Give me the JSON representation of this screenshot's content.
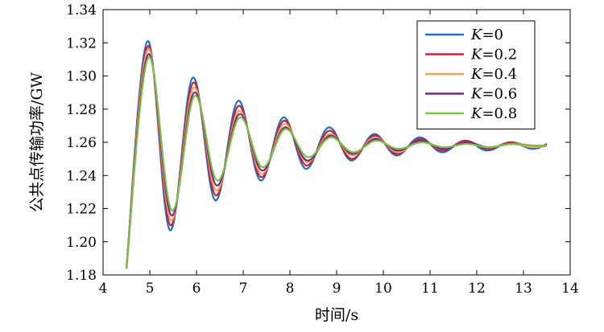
{
  "chart_data": {
    "type": "line",
    "title": "",
    "xlabel": "时间/s",
    "ylabel": "公共点传输功率/GW",
    "xlim": [
      4,
      14
    ],
    "ylim": [
      1.18,
      1.34
    ],
    "xticks": [
      "4",
      "5",
      "6",
      "7",
      "8",
      "9",
      "10",
      "11",
      "12",
      "13",
      "14"
    ],
    "yticks": [
      "1.18",
      "1.20",
      "1.22",
      "1.24",
      "1.26",
      "1.28",
      "1.30",
      "1.32",
      "1.34"
    ],
    "legend_position": "top-right",
    "grid": false,
    "series": [
      {
        "name": "K=0",
        "label_var": "K",
        "label_value": "=0",
        "color": "#1f6fbf",
        "points": [
          [
            4.5,
            1.184
          ],
          [
            4.95,
            1.321
          ],
          [
            5.43,
            1.207
          ],
          [
            5.92,
            1.299
          ],
          [
            6.4,
            1.225
          ],
          [
            6.89,
            1.285
          ],
          [
            7.37,
            1.237
          ],
          [
            7.86,
            1.275
          ],
          [
            8.34,
            1.244
          ],
          [
            8.83,
            1.269
          ],
          [
            9.31,
            1.249
          ],
          [
            9.8,
            1.265
          ],
          [
            10.28,
            1.252
          ],
          [
            10.77,
            1.263
          ],
          [
            11.25,
            1.254
          ],
          [
            11.74,
            1.261
          ],
          [
            12.22,
            1.255
          ],
          [
            12.71,
            1.26
          ],
          [
            13.19,
            1.256
          ],
          [
            13.5,
            1.259
          ]
        ]
      },
      {
        "name": "K=0.2",
        "label_var": "K",
        "label_value": "=0.2",
        "color": "#c8213c",
        "points": [
          [
            4.5,
            1.184
          ],
          [
            4.955,
            1.318
          ],
          [
            5.44,
            1.21
          ],
          [
            5.93,
            1.296
          ],
          [
            6.41,
            1.228
          ],
          [
            6.9,
            1.282
          ],
          [
            7.38,
            1.239
          ],
          [
            7.87,
            1.273
          ],
          [
            8.35,
            1.246
          ],
          [
            8.84,
            1.267
          ],
          [
            9.32,
            1.25
          ],
          [
            9.81,
            1.264
          ],
          [
            10.29,
            1.253
          ],
          [
            10.78,
            1.262
          ],
          [
            11.26,
            1.255
          ],
          [
            11.75,
            1.261
          ],
          [
            12.23,
            1.256
          ],
          [
            12.72,
            1.26
          ],
          [
            13.2,
            1.257
          ],
          [
            13.5,
            1.258
          ]
        ]
      },
      {
        "name": "K=0.4",
        "label_var": "K",
        "label_value": "=0.4",
        "color": "#f0a35a",
        "points": [
          [
            4.5,
            1.184
          ],
          [
            4.96,
            1.316
          ],
          [
            5.45,
            1.213
          ],
          [
            5.94,
            1.293
          ],
          [
            6.42,
            1.231
          ],
          [
            6.91,
            1.279
          ],
          [
            7.39,
            1.241
          ],
          [
            7.88,
            1.271
          ],
          [
            8.36,
            1.248
          ],
          [
            8.85,
            1.265
          ],
          [
            9.33,
            1.252
          ],
          [
            9.82,
            1.263
          ],
          [
            10.3,
            1.254
          ],
          [
            10.79,
            1.261
          ],
          [
            11.27,
            1.256
          ],
          [
            11.76,
            1.26
          ],
          [
            12.24,
            1.257
          ],
          [
            12.73,
            1.259
          ],
          [
            13.21,
            1.257
          ],
          [
            13.5,
            1.258
          ]
        ]
      },
      {
        "name": "K=0.6",
        "label_var": "K",
        "label_value": "=0.6",
        "color": "#6a2c8e",
        "points": [
          [
            4.5,
            1.184
          ],
          [
            4.965,
            1.313
          ],
          [
            5.46,
            1.216
          ],
          [
            5.95,
            1.29
          ],
          [
            6.43,
            1.234
          ],
          [
            6.92,
            1.277
          ],
          [
            7.4,
            1.243
          ],
          [
            7.89,
            1.269
          ],
          [
            8.37,
            1.249
          ],
          [
            8.86,
            1.264
          ],
          [
            9.34,
            1.253
          ],
          [
            9.83,
            1.262
          ],
          [
            10.31,
            1.255
          ],
          [
            10.8,
            1.261
          ],
          [
            11.28,
            1.256
          ],
          [
            11.77,
            1.26
          ],
          [
            12.25,
            1.257
          ],
          [
            12.74,
            1.259
          ],
          [
            13.22,
            1.258
          ],
          [
            13.5,
            1.258
          ]
        ]
      },
      {
        "name": "K=0.8",
        "label_var": "K",
        "label_value": "=0.8",
        "color": "#7cc142",
        "points": [
          [
            4.5,
            1.184
          ],
          [
            4.97,
            1.311
          ],
          [
            5.47,
            1.219
          ],
          [
            5.96,
            1.288
          ],
          [
            6.44,
            1.237
          ],
          [
            6.93,
            1.275
          ],
          [
            7.41,
            1.245
          ],
          [
            7.9,
            1.268
          ],
          [
            8.38,
            1.251
          ],
          [
            8.87,
            1.263
          ],
          [
            9.35,
            1.254
          ],
          [
            9.84,
            1.261
          ],
          [
            10.32,
            1.256
          ],
          [
            10.81,
            1.26
          ],
          [
            11.29,
            1.257
          ],
          [
            11.78,
            1.259
          ],
          [
            12.26,
            1.257
          ],
          [
            12.75,
            1.259
          ],
          [
            13.23,
            1.258
          ],
          [
            13.5,
            1.258
          ]
        ]
      }
    ]
  }
}
